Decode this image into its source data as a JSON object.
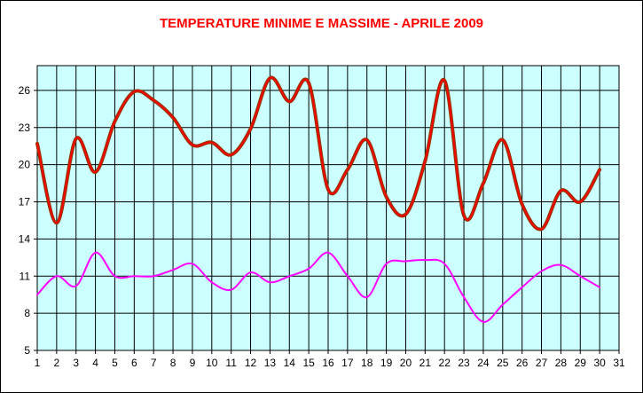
{
  "chart_data": {
    "type": "line",
    "title": "TEMPERATURE MINIME E MASSIME - APRILE 2009",
    "xlabel": "",
    "ylabel": "",
    "x": [
      1,
      2,
      3,
      4,
      5,
      6,
      7,
      8,
      9,
      10,
      11,
      12,
      13,
      14,
      15,
      16,
      17,
      18,
      19,
      20,
      21,
      22,
      23,
      24,
      25,
      26,
      27,
      28,
      29,
      30
    ],
    "x_ticks": [
      "1",
      "2",
      "3",
      "4",
      "5",
      "6",
      "7",
      "8",
      "9",
      "10",
      "11",
      "12",
      "13",
      "14",
      "15",
      "16",
      "17",
      "18",
      "19",
      "20",
      "21",
      "22",
      "23",
      "24",
      "25",
      "26",
      "27",
      "28",
      "29",
      "30",
      "31"
    ],
    "xlim": [
      1,
      31
    ],
    "y_ticks": [
      "5",
      "8",
      "11",
      "14",
      "17",
      "20",
      "23",
      "26"
    ],
    "ylim": [
      5,
      28
    ],
    "grid": true,
    "legend": "none",
    "series": [
      {
        "values": [
          21.7,
          15.3,
          22.1,
          19.4,
          23.5,
          25.9,
          25.2,
          23.8,
          21.6,
          21.8,
          20.8,
          22.9,
          27.0,
          25.1,
          26.6,
          18.0,
          19.6,
          22.0,
          17.4,
          16.0,
          20.3,
          26.8,
          15.9,
          18.5,
          22.0,
          16.8,
          14.8,
          17.9,
          17.0,
          19.6
        ],
        "color": "#ff0000",
        "outline": "#993300"
      },
      {
        "values": [
          9.5,
          11.0,
          10.2,
          12.9,
          11.0,
          11.0,
          11.0,
          11.5,
          12.0,
          10.5,
          9.9,
          11.3,
          10.5,
          11.0,
          11.6,
          12.9,
          11.0,
          9.3,
          12.0,
          12.2,
          12.3,
          12.0,
          9.3,
          7.3,
          8.7,
          10.1,
          11.4,
          11.9,
          11.0,
          10.1
        ],
        "color": "#ff00ff"
      }
    ],
    "colors": {
      "plot_background": "#ccffff",
      "grid": "#000000",
      "title": "#ff0000"
    }
  }
}
